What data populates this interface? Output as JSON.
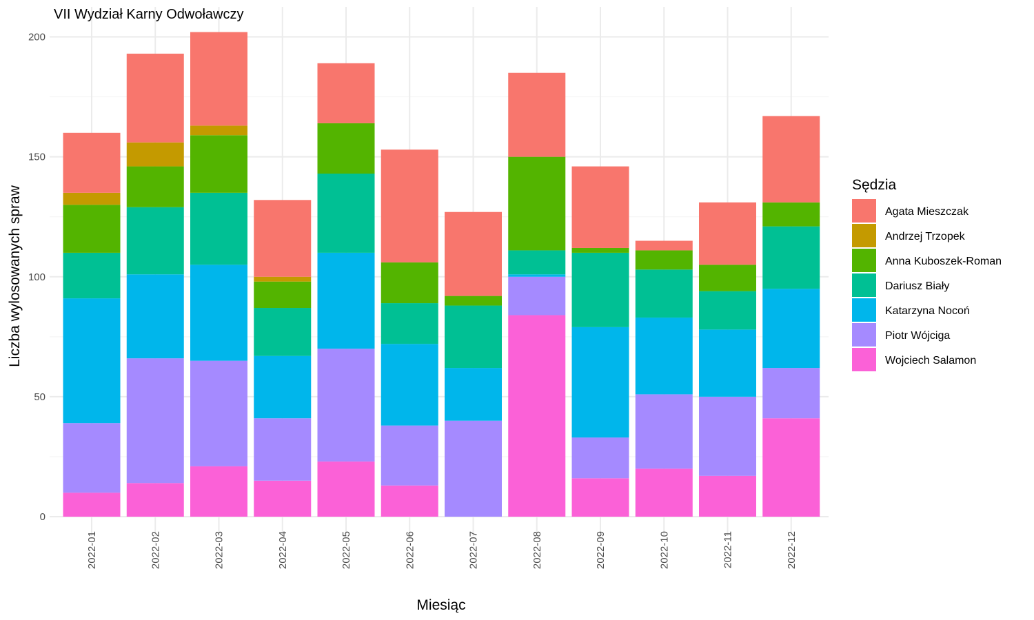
{
  "chart_data": {
    "type": "bar",
    "stacked": true,
    "title": "VII Wydział Karny Odwoławczy",
    "xlabel": "Miesiąc",
    "ylabel": "Liczba wylosowanych spraw",
    "ylim": [
      0,
      210
    ],
    "yticks": [
      0,
      50,
      100,
      150,
      200
    ],
    "grid": true,
    "legend_title": "Sędzia",
    "legend_position": "right",
    "categories": [
      "2022-01",
      "2022-02",
      "2022-03",
      "2022-04",
      "2022-05",
      "2022-06",
      "2022-07",
      "2022-08",
      "2022-09",
      "2022-10",
      "2022-11",
      "2022-12"
    ],
    "series": [
      {
        "name": "Agata Mieszczak",
        "color": "#F8766D",
        "values": [
          25,
          37,
          39,
          32,
          25,
          47,
          35,
          35,
          34,
          4,
          26,
          36
        ]
      },
      {
        "name": "Andrzej Trzopek",
        "color": "#C49A00",
        "values": [
          5,
          10,
          4,
          2,
          0,
          0,
          0,
          0,
          0,
          0,
          0,
          0
        ]
      },
      {
        "name": "Anna Kuboszek-Roman",
        "color": "#53B400",
        "values": [
          20,
          17,
          24,
          11,
          21,
          17,
          4,
          39,
          2,
          8,
          11,
          10
        ]
      },
      {
        "name": "Dariusz Biały",
        "color": "#00C094",
        "values": [
          19,
          28,
          30,
          20,
          33,
          17,
          26,
          10,
          31,
          20,
          16,
          26
        ]
      },
      {
        "name": "Katarzyna Nocoń",
        "color": "#00B6EB",
        "values": [
          52,
          35,
          40,
          26,
          40,
          34,
          22,
          1,
          46,
          32,
          28,
          33
        ]
      },
      {
        "name": "Piotr Wójciga",
        "color": "#A58AFF",
        "values": [
          29,
          52,
          44,
          26,
          47,
          25,
          40,
          16,
          17,
          31,
          33,
          21
        ]
      },
      {
        "name": "Wojciech Salamon",
        "color": "#FB61D7",
        "values": [
          10,
          14,
          21,
          15,
          23,
          13,
          0,
          84,
          16,
          20,
          17,
          41
        ]
      }
    ]
  }
}
